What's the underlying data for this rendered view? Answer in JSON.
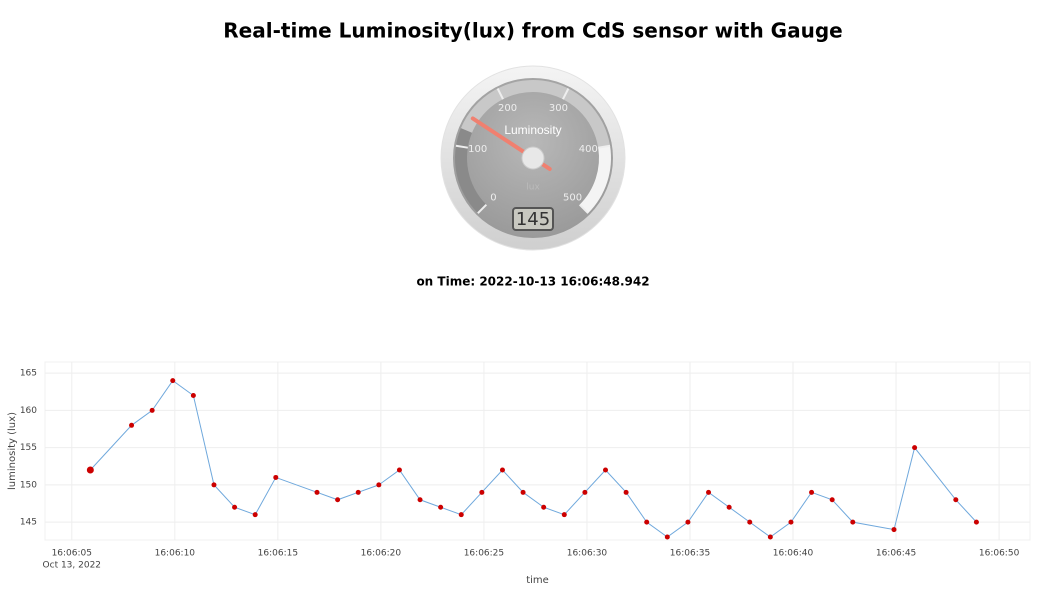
{
  "title": "Real-time Luminosity(lux) from CdS sensor with Gauge",
  "gauge": {
    "label": "Luminosity",
    "unit": "lux",
    "range": [
      0,
      500
    ],
    "ticks": [
      0,
      100,
      200,
      300,
      400,
      500
    ],
    "value": 145
  },
  "time_label": "on Time: 2022-10-13 16:06:48.942",
  "chart_data": {
    "type": "line",
    "x": [
      "16:06:05.9",
      "16:06:07.9",
      "16:06:08.9",
      "16:06:09.9",
      "16:06:10.9",
      "16:06:11.9",
      "16:06:12.9",
      "16:06:13.9",
      "16:06:14.9",
      "16:06:16.9",
      "16:06:17.9",
      "16:06:18.9",
      "16:06:19.9",
      "16:06:20.9",
      "16:06:21.9",
      "16:06:22.9",
      "16:06:23.9",
      "16:06:24.9",
      "16:06:25.9",
      "16:06:26.9",
      "16:06:27.9",
      "16:06:28.9",
      "16:06:29.9",
      "16:06:30.9",
      "16:06:31.9",
      "16:06:32.9",
      "16:06:33.9",
      "16:06:34.9",
      "16:06:35.9",
      "16:06:36.9",
      "16:06:37.9",
      "16:06:38.9",
      "16:06:39.9",
      "16:06:40.9",
      "16:06:41.9",
      "16:06:42.9",
      "16:06:44.9",
      "16:06:45.9",
      "16:06:47.9",
      "16:06:48.9"
    ],
    "series": [
      {
        "name": "luminosity",
        "color": "#6fa8dc",
        "marker_color": "#cc0000",
        "values": [
          152,
          158,
          160,
          164,
          162,
          150,
          147,
          146,
          151,
          149,
          148,
          149,
          150,
          152,
          148,
          147,
          146,
          149,
          152,
          149,
          147,
          146,
          149,
          152,
          149,
          145,
          143,
          145,
          149,
          147,
          145,
          143,
          145,
          149,
          148,
          145,
          144,
          155,
          148,
          145
        ]
      }
    ],
    "xlim": [
      "16:06:03.7",
      "16:06:51.5"
    ],
    "xticks": [
      "16:06:05",
      "16:06:10",
      "16:06:15",
      "16:06:20",
      "16:06:25",
      "16:06:30",
      "16:06:35",
      "16:06:40",
      "16:06:45",
      "16:06:50"
    ],
    "x_date_label": "Oct 13, 2022",
    "ylim": [
      142.6,
      166.5
    ],
    "yticks": [
      145,
      150,
      155,
      160,
      165
    ],
    "xlabel": "time",
    "ylabel": "luminosity (lux)",
    "grid": true
  }
}
